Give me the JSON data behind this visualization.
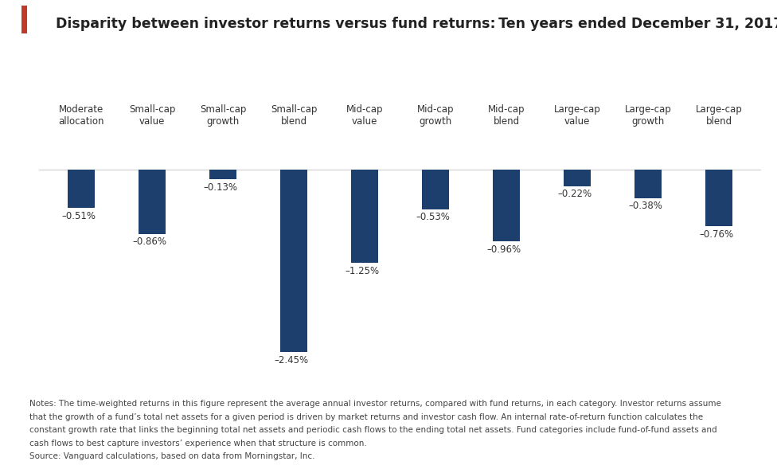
{
  "title": "Disparity between investor returns versus fund returns: Ten years ended December 31, 2017",
  "categories": [
    "Moderate\nallocation",
    "Small-cap\nvalue",
    "Small-cap\ngrowth",
    "Small-cap\nblend",
    "Mid-cap\nvalue",
    "Mid-cap\ngrowth",
    "Mid-cap\nblend",
    "Large-cap\nvalue",
    "Large-cap\ngrowth",
    "Large-cap\nblend"
  ],
  "values": [
    -0.51,
    -0.86,
    -0.13,
    -2.45,
    -1.25,
    -0.53,
    -0.96,
    -0.22,
    -0.38,
    -0.76
  ],
  "labels": [
    "–0.51%",
    "–0.86%",
    "–0.13%",
    "–2.45%",
    "–1.25%",
    "–0.53%",
    "–0.96%",
    "–0.22%",
    "–0.38%",
    "–0.76%"
  ],
  "bar_color": "#1c3f6e",
  "background_color": "#ffffff",
  "title_fontsize": 12.5,
  "label_fontsize": 8.5,
  "cat_fontsize": 8.5,
  "accent_color": "#c0392b",
  "notes_line1": "Notes: The time-weighted returns in this figure represent the average annual investor returns, compared with fund returns, in each category. Investor returns assume",
  "notes_line2": "that the growth of a fund’s total net assets for a given period is driven by market returns and investor cash flow. An internal rate-of-return function calculates the",
  "notes_line3": "constant growth rate that links the beginning total net assets and periodic cash flows to the ending total net assets. Fund categories include fund-of-fund assets and",
  "notes_line4": "cash flows to best capture investors’ experience when that structure is common.",
  "notes_line5": "Source: Vanguard calculations, based on data from Morningstar, Inc.",
  "ylim": [
    -2.8,
    0.5
  ],
  "baseline_y": 0
}
